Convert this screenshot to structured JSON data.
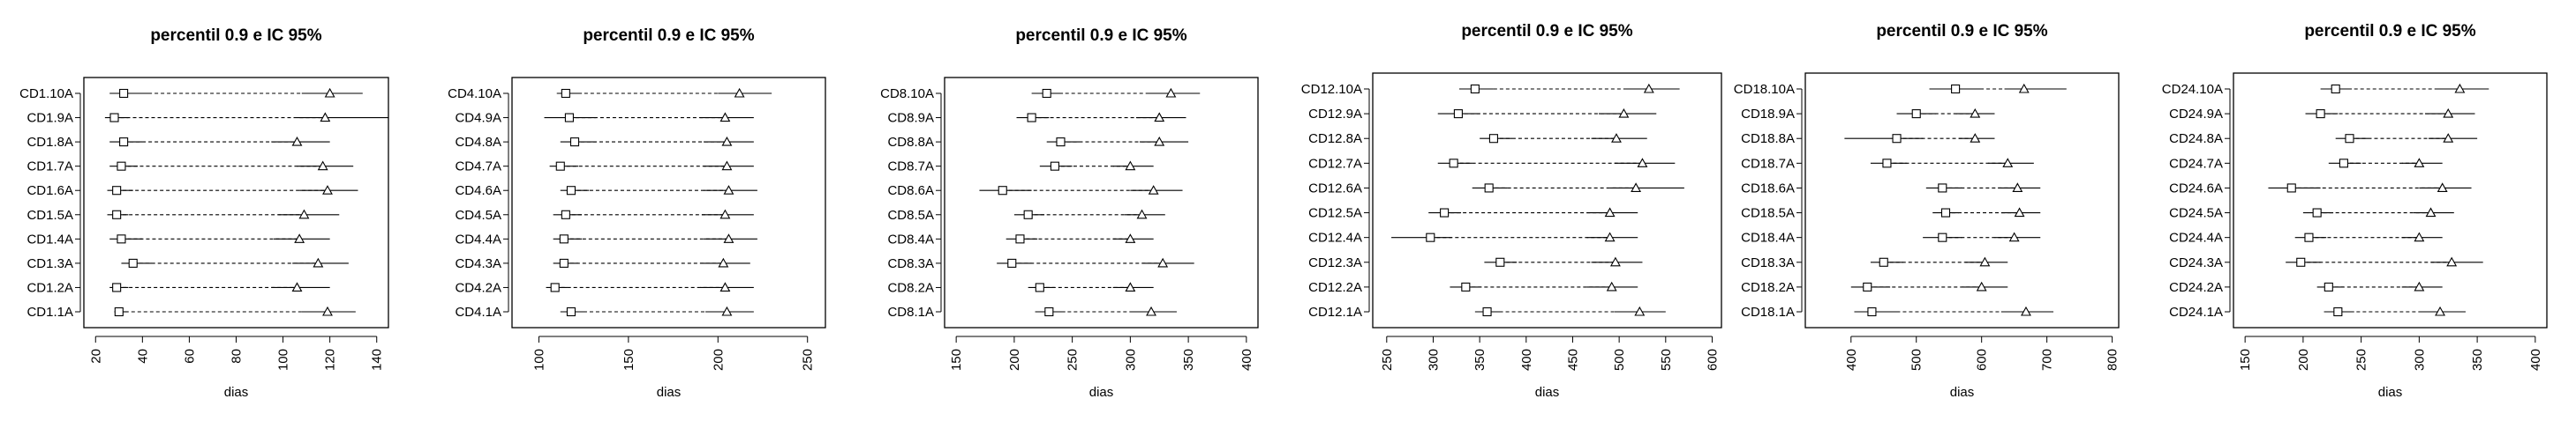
{
  "figure": {
    "title": "",
    "background": "#ffffff",
    "line_color": "#000000"
  },
  "chart_data": [
    {
      "type": "scatter",
      "title": "percentil 0.9 e IC 95%",
      "xlabel": "dias",
      "ylabel": "",
      "xlim": [
        15,
        145
      ],
      "xticks": [
        20,
        40,
        60,
        80,
        100,
        120,
        140
      ],
      "categories": [
        "CD1.1A",
        "CD1.2A",
        "CD1.3A",
        "CD1.4A",
        "CD1.5A",
        "CD1.6A",
        "CD1.7A",
        "CD1.8A",
        "CD1.9A",
        "CD1.10A"
      ],
      "series": [
        {
          "values": [
            30,
            29,
            36,
            31,
            29,
            29,
            31,
            32,
            28,
            32
          ],
          "ci": [
            [
              28,
              34
            ],
            [
              26,
              34
            ],
            [
              31,
              44
            ],
            [
              26,
              40
            ],
            [
              25,
              34
            ],
            [
              25,
              36
            ],
            [
              26,
              38
            ],
            [
              26,
              40
            ],
            [
              24,
              34
            ],
            [
              26,
              44
            ]
          ]
        },
        {
          "values": [
            119,
            106,
            115,
            107,
            109,
            119,
            117,
            106,
            118,
            120
          ],
          "ci": [
            [
              108,
              131
            ],
            [
              95,
              120
            ],
            [
              104,
              128
            ],
            [
              96,
              120
            ],
            [
              98,
              124
            ],
            [
              107,
              132
            ],
            [
              106,
              130
            ],
            [
              95,
              120
            ],
            [
              106,
              145
            ],
            [
              108,
              134
            ]
          ]
        }
      ]
    },
    {
      "type": "scatter",
      "title": "percentil 0.9 e IC 95%",
      "xlabel": "dias",
      "ylabel": "",
      "xlim": [
        85,
        260
      ],
      "xticks": [
        100,
        150,
        200,
        250
      ],
      "categories": [
        "CD4.1A",
        "CD4.2A",
        "CD4.3A",
        "CD4.4A",
        "CD4.5A",
        "CD4.6A",
        "CD4.7A",
        "CD4.8A",
        "CD4.9A",
        "CD4.10A"
      ],
      "series": [
        {
          "values": [
            118,
            109,
            114,
            114,
            115,
            118,
            112,
            120,
            117,
            115
          ],
          "ci": [
            [
              112,
              125
            ],
            [
              104,
              116
            ],
            [
              108,
              122
            ],
            [
              108,
              124
            ],
            [
              108,
              124
            ],
            [
              112,
              128
            ],
            [
              106,
              122
            ],
            [
              112,
              132
            ],
            [
              103,
              132
            ],
            [
              110,
              124
            ]
          ]
        },
        {
          "values": [
            205,
            204,
            203,
            206,
            204,
            206,
            205,
            205,
            204,
            212
          ],
          "ci": [
            [
              193,
              220
            ],
            [
              190,
              220
            ],
            [
              190,
              218
            ],
            [
              192,
              222
            ],
            [
              191,
              220
            ],
            [
              192,
              222
            ],
            [
              192,
              220
            ],
            [
              192,
              220
            ],
            [
              190,
              220
            ],
            [
              200,
              230
            ]
          ]
        }
      ]
    },
    {
      "type": "scatter",
      "title": "percentil 0.9 e IC 95%",
      "xlabel": "dias",
      "ylabel": "",
      "xlim": [
        140,
        410
      ],
      "xticks": [
        150,
        200,
        250,
        300,
        350,
        400
      ],
      "categories": [
        "CD8.1A",
        "CD8.2A",
        "CD8.3A",
        "CD8.4A",
        "CD8.5A",
        "CD8.6A",
        "CD8.7A",
        "CD8.8A",
        "CD8.9A",
        "CD8.10A"
      ],
      "series": [
        {
          "values": [
            230,
            222,
            198,
            205,
            212,
            190,
            235,
            240,
            215,
            228
          ],
          "ci": [
            [
              218,
              244
            ],
            [
              212,
              235
            ],
            [
              185,
              215
            ],
            [
              193,
              220
            ],
            [
              200,
              226
            ],
            [
              170,
              215
            ],
            [
              222,
              250
            ],
            [
              228,
              256
            ],
            [
              202,
              230
            ],
            [
              215,
              242
            ]
          ]
        },
        {
          "values": [
            318,
            300,
            328,
            300,
            310,
            320,
            300,
            325,
            325,
            335
          ],
          "ci": [
            [
              300,
              340
            ],
            [
              285,
              320
            ],
            [
              310,
              355
            ],
            [
              285,
              320
            ],
            [
              295,
              330
            ],
            [
              300,
              345
            ],
            [
              285,
              320
            ],
            [
              308,
              350
            ],
            [
              305,
              348
            ],
            [
              315,
              360
            ]
          ]
        }
      ]
    },
    {
      "type": "scatter",
      "title": "percentil 0.9 e IC 95%",
      "xlabel": "dias",
      "ylabel": "",
      "xlim": [
        235,
        610
      ],
      "xticks": [
        250,
        300,
        350,
        400,
        450,
        500,
        550,
        600
      ],
      "categories": [
        "CD12.1A",
        "CD12.2A",
        "CD12.3A",
        "CD12.4A",
        "CD12.5A",
        "CD12.6A",
        "CD12.7A",
        "CD12.8A",
        "CD12.9A",
        "CD12.10A"
      ],
      "series": [
        {
          "values": [
            358,
            335,
            372,
            297,
            312,
            360,
            322,
            365,
            327,
            345
          ],
          "ci": [
            [
              345,
              375
            ],
            [
              318,
              352
            ],
            [
              355,
              390
            ],
            [
              255,
              320
            ],
            [
              295,
              330
            ],
            [
              342,
              380
            ],
            [
              305,
              342
            ],
            [
              350,
              385
            ],
            [
              305,
              350
            ],
            [
              328,
              365
            ]
          ]
        },
        {
          "values": [
            522,
            492,
            496,
            490,
            490,
            518,
            525,
            497,
            505,
            532
          ],
          "ci": [
            [
              495,
              550
            ],
            [
              465,
              520
            ],
            [
              470,
              525
            ],
            [
              465,
              520
            ],
            [
              465,
              520
            ],
            [
              490,
              570
            ],
            [
              495,
              560
            ],
            [
              470,
              530
            ],
            [
              478,
              540
            ],
            [
              505,
              565
            ]
          ]
        }
      ]
    },
    {
      "type": "scatter",
      "title": "percentil 0.9 e IC 95%",
      "xlabel": "dias",
      "ylabel": "",
      "xlim": [
        330,
        810
      ],
      "xticks": [
        400,
        500,
        600,
        700,
        800
      ],
      "categories": [
        "CD18.1A",
        "CD18.2A",
        "CD18.3A",
        "CD18.4A",
        "CD18.5A",
        "CD18.6A",
        "CD18.7A",
        "CD18.8A",
        "CD18.9A",
        "CD18.10A"
      ],
      "series": [
        {
          "values": [
            432,
            425,
            450,
            540,
            545,
            540,
            455,
            470,
            500,
            560
          ],
          "ci": [
            [
              405,
              470
            ],
            [
              400,
              460
            ],
            [
              430,
              480
            ],
            [
              510,
              570
            ],
            [
              525,
              565
            ],
            [
              515,
              570
            ],
            [
              430,
              485
            ],
            [
              390,
              510
            ],
            [
              470,
              530
            ],
            [
              520,
              600
            ]
          ]
        },
        {
          "values": [
            668,
            600,
            605,
            650,
            658,
            655,
            640,
            590,
            590,
            665
          ],
          "ci": [
            [
              630,
              710
            ],
            [
              570,
              640
            ],
            [
              575,
              640
            ],
            [
              620,
              690
            ],
            [
              630,
              690
            ],
            [
              625,
              690
            ],
            [
              610,
              680
            ],
            [
              565,
              620
            ],
            [
              560,
              620
            ],
            [
              635,
              730
            ]
          ]
        }
      ]
    },
    {
      "type": "scatter",
      "title": "percentil 0.9 e IC 95%",
      "xlabel": "dias",
      "ylabel": "",
      "xlim": [
        140,
        410
      ],
      "xticks": [
        150,
        200,
        250,
        300,
        350,
        400
      ],
      "categories": [
        "CD24.1A",
        "CD24.2A",
        "CD24.3A",
        "CD24.4A",
        "CD24.5A",
        "CD24.6A",
        "CD24.7A",
        "CD24.8A",
        "CD24.9A",
        "CD24.10A"
      ],
      "series": [
        {
          "values": [
            230,
            222,
            198,
            205,
            212,
            190,
            235,
            240,
            215,
            228
          ],
          "ci": [
            [
              218,
              244
            ],
            [
              212,
              235
            ],
            [
              185,
              215
            ],
            [
              193,
              220
            ],
            [
              200,
              226
            ],
            [
              170,
              215
            ],
            [
              222,
              250
            ],
            [
              228,
              256
            ],
            [
              202,
              230
            ],
            [
              215,
              242
            ]
          ]
        },
        {
          "values": [
            318,
            300,
            328,
            300,
            310,
            320,
            300,
            325,
            325,
            335
          ],
          "ci": [
            [
              300,
              340
            ],
            [
              285,
              320
            ],
            [
              310,
              355
            ],
            [
              285,
              320
            ],
            [
              295,
              330
            ],
            [
              300,
              345
            ],
            [
              285,
              320
            ],
            [
              308,
              350
            ],
            [
              305,
              348
            ],
            [
              315,
              360
            ]
          ]
        }
      ]
    }
  ]
}
